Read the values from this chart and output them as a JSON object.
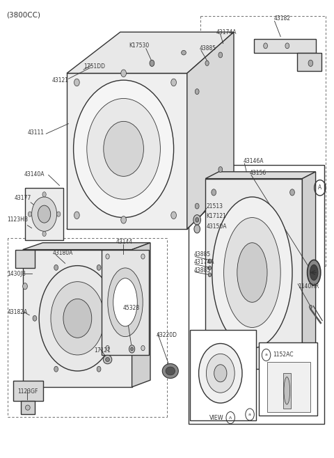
{
  "bg_color": "#ffffff",
  "line_color": "#333333",
  "title_text": "(3800CC)",
  "parts_labels": [
    "1751DD",
    "43121",
    "43111",
    "43140A",
    "43177",
    "1123HB",
    "K17530",
    "43885",
    "43174A",
    "43182",
    "21513",
    "K17121",
    "43150A",
    "43146A",
    "43156",
    "1140HR",
    "43885",
    "43174A",
    "43885",
    "43144",
    "45328",
    "17121",
    "43220D",
    "43180A",
    "1430JB",
    "43182A",
    "1123GF",
    "1152AC",
    "VIEW A"
  ]
}
